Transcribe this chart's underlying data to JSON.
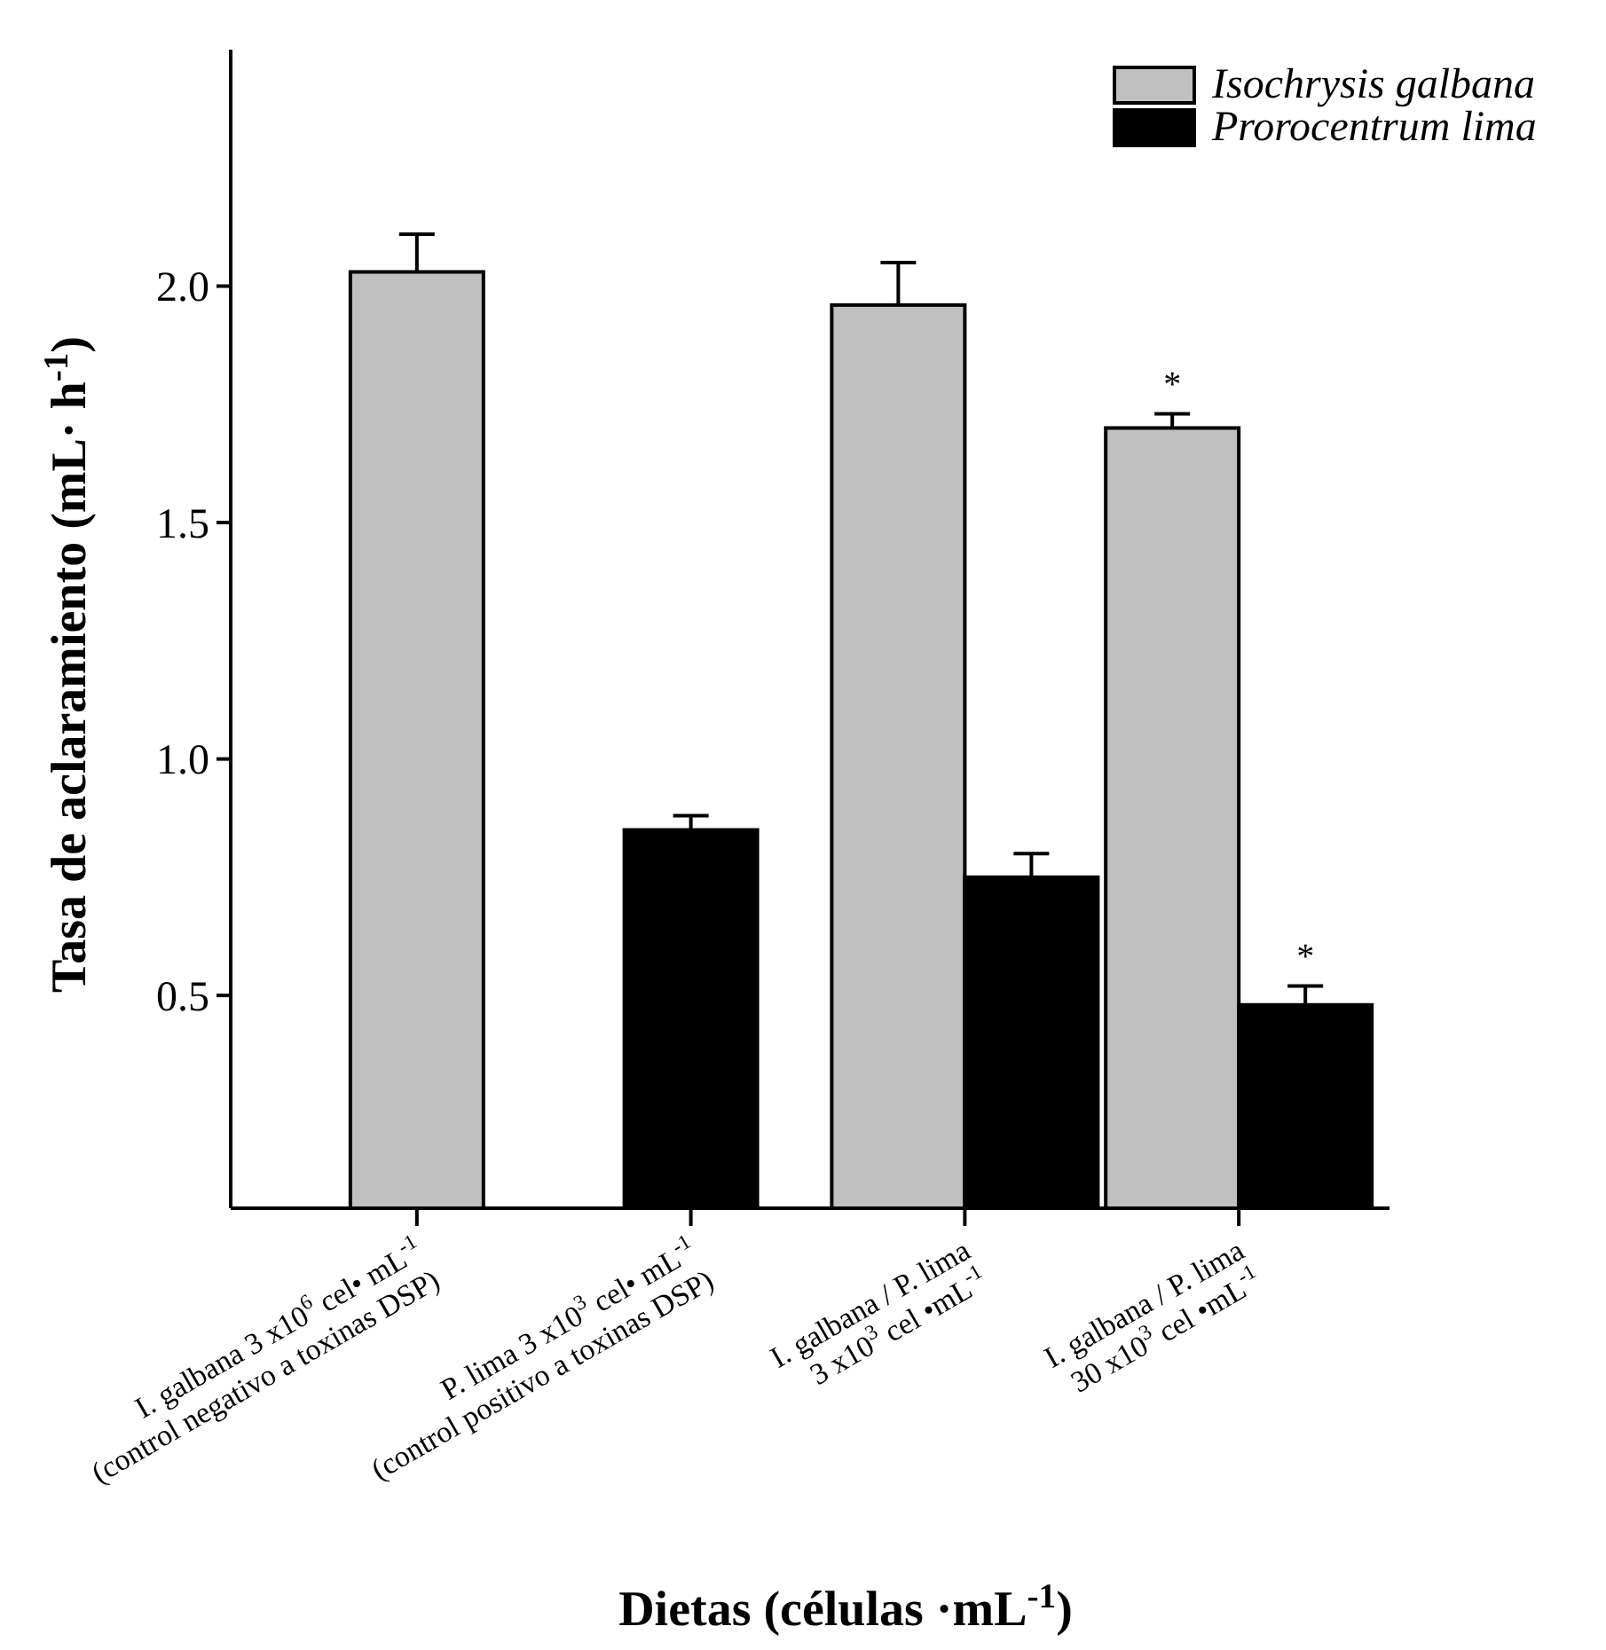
{
  "chart_data": {
    "type": "bar",
    "xlabel": "Dietas (células ·mL$^{-1}$)",
    "ylabel": "Tasa de aclaramiento (mL· h$^{-1}$)",
    "categories": [
      "I. galbana 3 x10$^{6}$  cel• mL$^{-1}$\n(control negativo a toxinas DSP)",
      "P. lima  3 x10$^{3}$  cel• mL$^{-1}$\n(control positivo a toxinas DSP)",
      "I. galbana / P. lima\n3 x10$^{3}$ cel •mL$^{-1}$",
      "I. galbana / P. lima\n30 x10$^{3}$  cel •mL$^{-1}$"
    ],
    "series": [
      {
        "name": "Isochrysis galbana",
        "color": "#c0c0c0",
        "values": [
          2.03,
          null,
          1.96,
          1.7
        ],
        "errors": [
          0.08,
          null,
          0.09,
          0.03
        ]
      },
      {
        "name": "Prorocentrum lima",
        "color": "#000000",
        "values": [
          null,
          0.85,
          0.75,
          0.48
        ],
        "errors": [
          null,
          0.03,
          0.05,
          0.04
        ]
      }
    ],
    "ylim": [
      0.05,
      2.5
    ],
    "yticks": [
      {
        "value": 0.5,
        "label": "0.5"
      },
      {
        "value": 1,
        "label": "1.0"
      },
      {
        "value": 1.5,
        "label": "1.5"
      },
      {
        "value": 2,
        "label": "2.0"
      }
    ],
    "grid": false,
    "legend": "top right",
    "annotations": [
      {
        "text": "*",
        "x": "I. galbana / P. lima\n30 x10$^{3}$  cel •mL$^{-1}$",
        "y": 1.7
      },
      {
        "text": "*",
        "x": "I. galbana / P. lima\n30 x10$^{3}$  cel •mL$^{-1}$",
        "y": 0.48
      }
    ]
  }
}
